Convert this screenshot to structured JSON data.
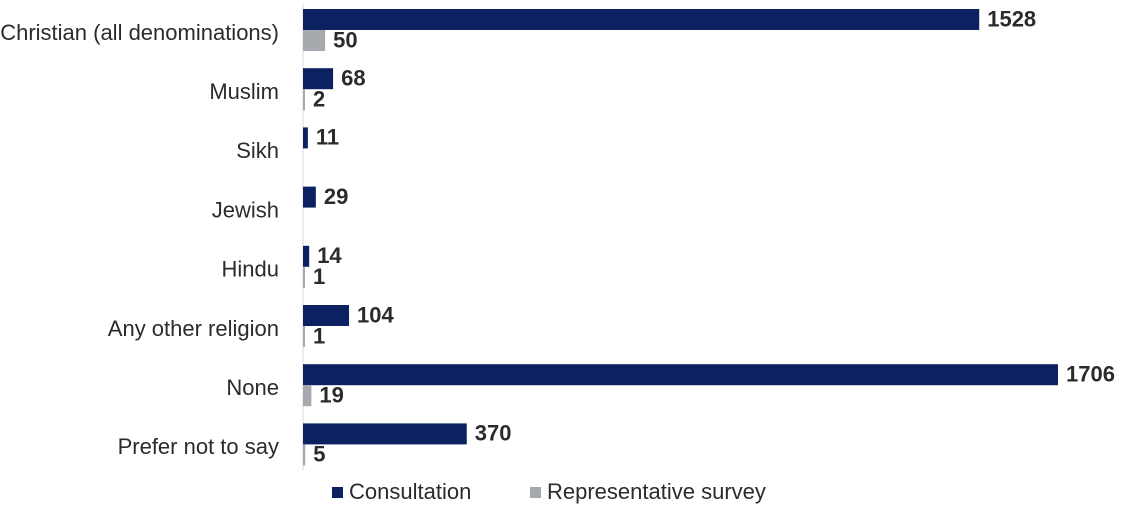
{
  "chart_data": {
    "type": "bar",
    "orientation": "horizontal",
    "categories": [
      "Christian (all denominations)",
      "Muslim",
      "Sikh",
      "Jewish",
      "Hindu",
      "Any other religion",
      "None",
      "Prefer not to say"
    ],
    "series": [
      {
        "name": "Consultation",
        "color": "#0b2160",
        "values": [
          1528,
          68,
          11,
          29,
          14,
          104,
          1706,
          370
        ]
      },
      {
        "name": "Representative survey",
        "color": "#a6a9ae",
        "values": [
          50,
          2,
          null,
          null,
          1,
          1,
          19,
          5
        ]
      }
    ],
    "xlim": [
      0,
      1706
    ],
    "grid": false,
    "legend_position": "bottom-center",
    "title": "",
    "xlabel": "",
    "ylabel": ""
  }
}
